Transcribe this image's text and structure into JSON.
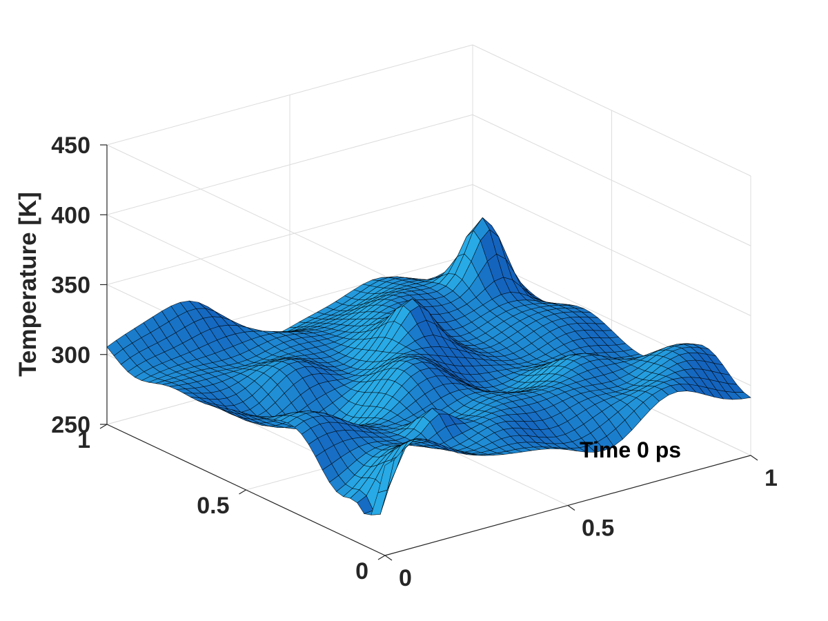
{
  "chart_data": {
    "type": "surface",
    "title": "",
    "xlabel": "",
    "ylabel": "",
    "zlabel": "Temperature [K]",
    "annotation": "Time 0 ps",
    "xlim": [
      0,
      1
    ],
    "ylim": [
      0,
      1
    ],
    "zlim": [
      250,
      450
    ],
    "x_ticks": [
      "0",
      "0.5",
      "1"
    ],
    "y_ticks": [
      "0",
      "0.5",
      "1"
    ],
    "z_ticks": [
      "250",
      "300",
      "350",
      "400",
      "450"
    ],
    "grid": true,
    "view": "3d-perspective",
    "surface_color": "#1e8fd6",
    "edge_color": "#000000",
    "field_summary": {
      "mean_temperature": 300,
      "min_temperature": 255,
      "max_temperature": 363,
      "pattern": "random spatial temperature fluctuations over the unit square"
    }
  }
}
